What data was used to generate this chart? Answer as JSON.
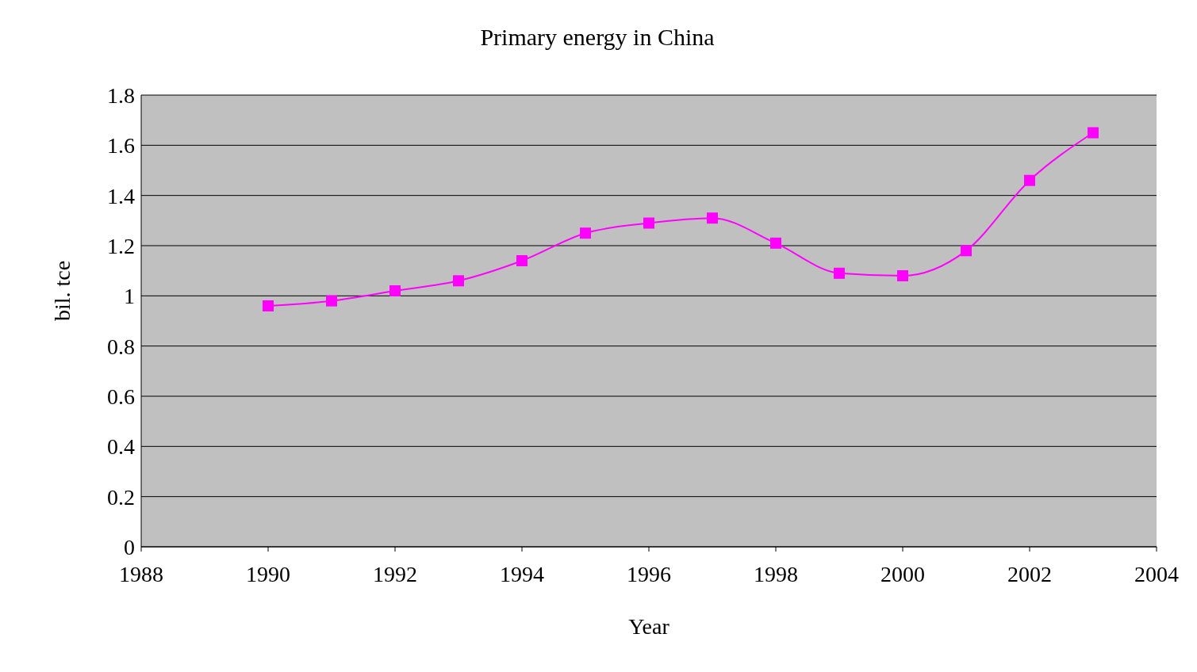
{
  "chart_data": {
    "type": "line",
    "title": "Primary energy in China",
    "xlabel": "Year",
    "ylabel": "bil. tce",
    "x": [
      1990,
      1991,
      1992,
      1993,
      1994,
      1995,
      1996,
      1997,
      1998,
      1999,
      2000,
      2001,
      2002,
      2003
    ],
    "series": [
      {
        "color": "#ff00ff",
        "values": [
          0.96,
          0.98,
          1.02,
          1.06,
          1.14,
          1.25,
          1.29,
          1.31,
          1.21,
          1.09,
          1.08,
          1.18,
          1.46,
          1.65
        ]
      }
    ],
    "xlim": [
      1988,
      2004
    ],
    "xticks": [
      1988,
      1990,
      1992,
      1994,
      1996,
      1998,
      2000,
      2002,
      2004
    ],
    "ylim": [
      0,
      1.8
    ],
    "yticks": [
      0,
      0.2,
      0.4,
      0.6,
      0.8,
      1,
      1.2,
      1.4,
      1.6,
      1.8
    ],
    "grid": "y",
    "marker": "square",
    "line_style": "solid",
    "legend": false
  }
}
